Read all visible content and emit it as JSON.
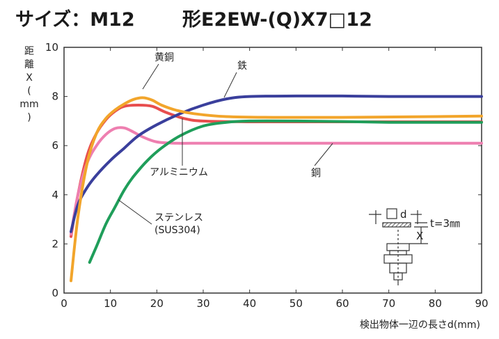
{
  "header": {
    "title_left": "サイズ：M12",
    "title_right": "形E2EW-(Q)X7□12"
  },
  "chart_data": {
    "type": "line",
    "xlabel": "検出物体一辺の長さd(mm)",
    "ylabel": [
      "距",
      "離",
      "X",
      "(",
      "mm",
      ")"
    ],
    "xlim": [
      0,
      90
    ],
    "ylim": [
      0,
      10
    ],
    "xticks": [
      0,
      10,
      20,
      30,
      40,
      50,
      60,
      70,
      80,
      90
    ],
    "yticks": [
      0,
      2,
      4,
      6,
      8,
      10
    ],
    "grid": false,
    "series": [
      {
        "name": "鉄",
        "color": "#3a3f9c",
        "x": [
          1.5,
          3,
          5,
          7,
          10,
          13,
          16,
          20,
          25,
          30,
          35,
          40,
          50,
          60,
          70,
          80,
          90
        ],
        "y": [
          2.5,
          3.6,
          4.3,
          4.8,
          5.4,
          5.9,
          6.4,
          6.85,
          7.3,
          7.65,
          7.9,
          8.0,
          8.02,
          8.02,
          8.0,
          8.0,
          8.0
        ]
      },
      {
        "name": "黄銅",
        "color": "#f2a52b",
        "x": [
          1.5,
          3,
          5,
          7,
          9,
          11,
          13,
          15,
          17,
          19,
          21,
          24,
          28,
          35,
          45,
          60,
          80,
          90
        ],
        "y": [
          0.5,
          3.1,
          5.3,
          6.5,
          7.1,
          7.45,
          7.7,
          7.88,
          7.95,
          7.85,
          7.65,
          7.45,
          7.3,
          7.18,
          7.15,
          7.15,
          7.18,
          7.2
        ]
      },
      {
        "name": "アルミニウム",
        "color": "#e84e4e",
        "x": [
          1.5,
          3,
          5,
          7,
          9,
          11,
          13,
          16,
          19,
          22,
          26,
          30,
          40,
          50,
          60,
          70,
          80,
          90
        ],
        "y": [
          2.3,
          4.0,
          5.6,
          6.5,
          7.05,
          7.4,
          7.6,
          7.65,
          7.6,
          7.35,
          7.1,
          7.0,
          6.97,
          6.97,
          6.97,
          6.97,
          6.97,
          6.97
        ]
      },
      {
        "name": "銅",
        "color": "#ee7fb0",
        "x": [
          1.5,
          3,
          5,
          7,
          9,
          11,
          13,
          15,
          17,
          20,
          24,
          30,
          40,
          50,
          60,
          70,
          80,
          90
        ],
        "y": [
          2.4,
          4.0,
          5.3,
          6.0,
          6.45,
          6.7,
          6.72,
          6.55,
          6.35,
          6.15,
          6.1,
          6.1,
          6.1,
          6.1,
          6.1,
          6.1,
          6.1,
          6.1
        ]
      },
      {
        "name": "ステンレス(SUS304)",
        "color": "#1f9e5a",
        "x": [
          5.5,
          7,
          9,
          11,
          13,
          15,
          18,
          21,
          25,
          30,
          35,
          40,
          50,
          60,
          70,
          80,
          90
        ],
        "y": [
          1.25,
          1.9,
          2.8,
          3.5,
          4.2,
          4.75,
          5.4,
          5.9,
          6.4,
          6.8,
          6.95,
          7.0,
          7.0,
          6.98,
          6.95,
          6.95,
          6.95
        ]
      }
    ],
    "annotations": [
      {
        "series": "黄銅",
        "lines": [
          "黄銅"
        ]
      },
      {
        "series": "鉄",
        "lines": [
          "鉄"
        ]
      },
      {
        "series": "アルミニウム",
        "lines": [
          "アルミニウム"
        ]
      },
      {
        "series": "銅",
        "lines": [
          "銅"
        ]
      },
      {
        "series": "ステンレス(SUS304)",
        "lines": [
          "ステンレス",
          "(SUS304)"
        ]
      }
    ]
  },
  "diagram": {
    "d_label": "d",
    "x_label": "X",
    "t_label": "t=3㎜"
  }
}
